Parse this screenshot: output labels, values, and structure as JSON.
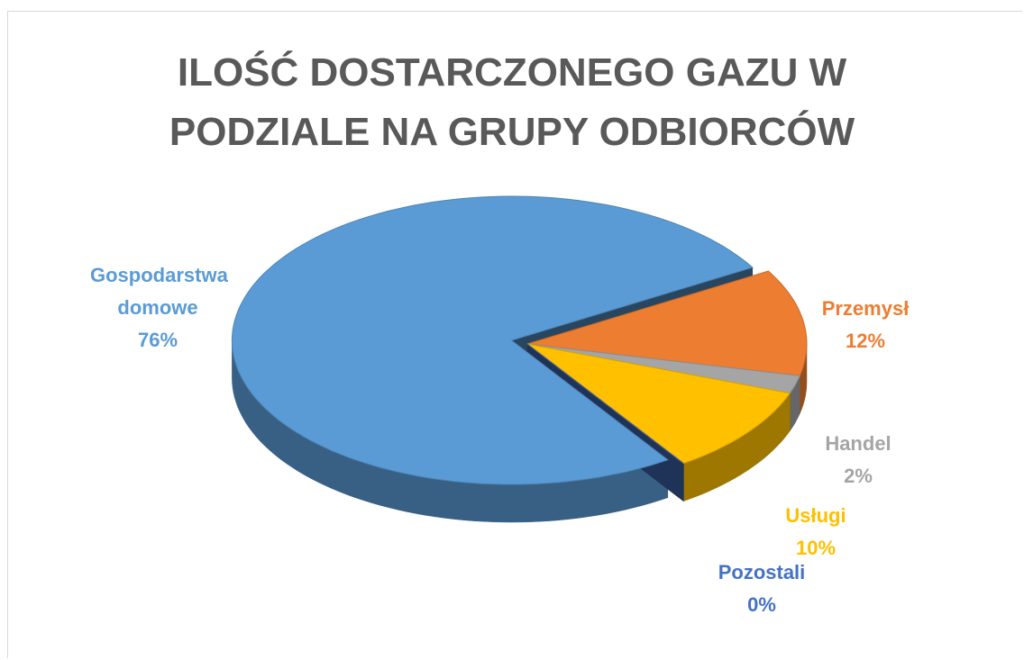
{
  "chart_data": {
    "type": "pie",
    "title": "ILOŚĆ DOSTARCZONEGO GAZU W PODZIALE NA GRUPY ODBIORCÓW",
    "categories": [
      "Gospodarstwa domowe",
      "Przemysł",
      "Handel",
      "Usługi",
      "Pozostali"
    ],
    "values": [
      76,
      12,
      2,
      10,
      0
    ],
    "value_labels": [
      "76%",
      "12%",
      "2%",
      "10%",
      "0%"
    ],
    "colors": [
      "#5b9bd5",
      "#ed7d31",
      "#a5a5a5",
      "#ffc000",
      "#4472c4"
    ]
  }
}
